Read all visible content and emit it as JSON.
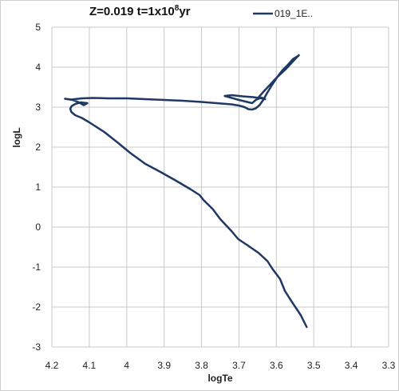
{
  "chart_data": {
    "type": "line",
    "title_main": "Z=0.019 t=1x10",
    "title_sup": "8",
    "title_tail": "yr",
    "xlabel": "logTe",
    "ylabel": "logL",
    "xlim": [
      4.2,
      3.3
    ],
    "ylim": [
      -3,
      5
    ],
    "x_ticks": [
      "4.2",
      "4.1",
      "4",
      "3.9",
      "3.8",
      "3.7",
      "3.6",
      "3.5",
      "3.4",
      "3.3"
    ],
    "y_ticks": [
      "5",
      "4",
      "3",
      "2",
      "1",
      "0",
      "-1",
      "-2",
      "-3"
    ],
    "grid": true,
    "legend_position": "top-right",
    "series": [
      {
        "name": "019_1E..",
        "color": "#1f3864",
        "x": [
          3.519,
          3.535,
          3.56,
          3.577,
          3.59,
          3.61,
          3.624,
          3.647,
          3.678,
          3.702,
          3.72,
          3.75,
          3.77,
          3.795,
          3.805,
          3.83,
          3.87,
          3.91,
          3.95,
          3.99,
          4.025,
          4.06,
          4.1,
          4.12,
          4.138,
          4.148,
          4.151,
          4.147,
          4.137,
          4.123,
          4.105,
          4.115,
          4.13,
          4.145,
          4.165,
          4.148,
          4.12,
          4.09,
          4.05,
          4.0,
          3.95,
          3.9,
          3.85,
          3.8,
          3.76,
          3.72,
          3.7,
          3.685,
          3.675,
          3.665,
          3.655,
          3.645,
          3.635,
          3.625,
          3.612,
          3.598,
          3.584,
          3.57,
          3.556,
          3.542,
          3.54,
          3.555,
          3.575,
          3.6,
          3.618,
          3.635,
          3.65,
          3.665,
          3.7,
          3.738,
          3.72,
          3.69,
          3.662,
          3.64,
          3.63,
          3.64,
          3.655
        ],
        "y": [
          -2.5,
          -2.2,
          -1.85,
          -1.6,
          -1.3,
          -1.05,
          -0.85,
          -0.65,
          -0.45,
          -0.3,
          -0.1,
          0.2,
          0.45,
          0.68,
          0.8,
          0.95,
          1.17,
          1.38,
          1.58,
          1.85,
          2.12,
          2.38,
          2.62,
          2.73,
          2.8,
          2.88,
          2.96,
          3.03,
          3.08,
          3.12,
          3.1,
          3.05,
          3.13,
          3.18,
          3.21,
          3.19,
          3.22,
          3.23,
          3.22,
          3.22,
          3.2,
          3.18,
          3.16,
          3.13,
          3.1,
          3.07,
          3.04,
          3.0,
          2.95,
          2.94,
          2.97,
          3.05,
          3.18,
          3.35,
          3.55,
          3.75,
          3.92,
          4.05,
          4.2,
          4.28,
          4.3,
          4.15,
          3.95,
          3.73,
          3.55,
          3.38,
          3.22,
          3.1,
          3.18,
          3.28,
          3.3,
          3.27,
          3.25,
          3.22,
          3.2,
          3.24,
          3.18
        ]
      }
    ]
  }
}
